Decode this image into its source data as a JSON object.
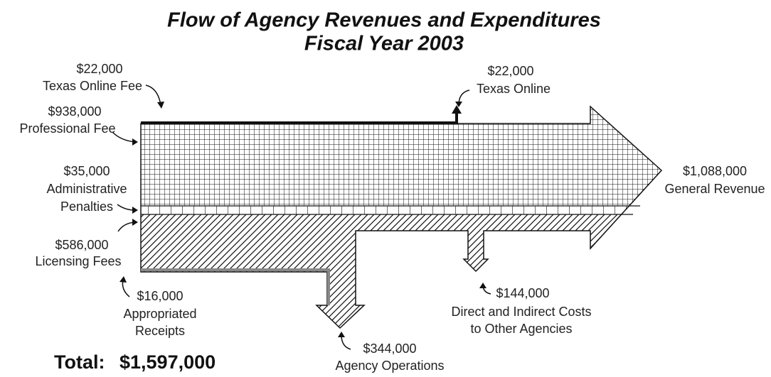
{
  "title": [
    "Flow of Agency Revenues and Expenditures",
    "Fiscal Year 2003"
  ],
  "inflows": [
    {
      "amount": "$22,000",
      "label": [
        "Texas Online Fee"
      ]
    },
    {
      "amount": "$938,000",
      "label": [
        "Professional Fee"
      ]
    },
    {
      "amount": "$35,000",
      "label": [
        "Administrative",
        "Penalties"
      ]
    },
    {
      "amount": "$586,000",
      "label": [
        "Licensing Fees"
      ]
    },
    {
      "amount": "$16,000",
      "label": [
        "Appropriated",
        "Receipts"
      ]
    }
  ],
  "outflows": [
    {
      "amount": "$22,000",
      "label": [
        "Texas Online"
      ]
    },
    {
      "amount": "$1,088,000",
      "label": [
        "General Revenue"
      ]
    },
    {
      "amount": "$144,000",
      "label": [
        "Direct and Indirect Costs",
        "to Other Agencies"
      ]
    },
    {
      "amount": "$344,000",
      "label": [
        "Agency Operations"
      ]
    }
  ],
  "total": {
    "label": "Total:",
    "amount": "$1,597,000"
  }
}
